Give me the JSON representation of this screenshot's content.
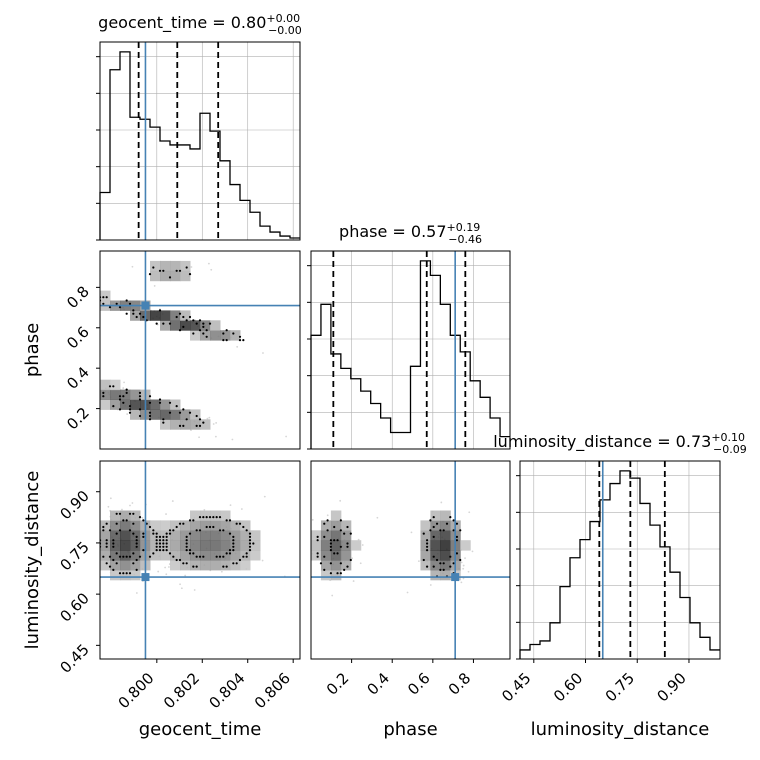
{
  "chart_data": {
    "type": "corner",
    "parameters": [
      "geocent_time",
      "phase",
      "luminosity_distance"
    ],
    "truths": {
      "geocent_time": 0.7995,
      "phase": 0.71,
      "luminosity_distance": 0.65
    },
    "titles": [
      {
        "param": "geocent_time",
        "label": "geocent_time = 0.80",
        "plus": "+0.00",
        "minus": "−0.00"
      },
      {
        "param": "phase",
        "label": "phase = 0.57",
        "plus": "+0.19",
        "minus": "−0.46"
      },
      {
        "param": "luminosity_distance",
        "label": "luminosity_distance = 0.73",
        "plus": "+0.10",
        "minus": "−0.09"
      }
    ],
    "axis_labels": {
      "geocent_time": "geocent_time",
      "phase": "phase",
      "luminosity_distance": "luminosity_distance"
    },
    "ranges": {
      "geocent_time": [
        0.7975,
        0.8063
      ],
      "phase": [
        0.0,
        0.98
      ],
      "luminosity_distance": [
        0.41,
        0.99
      ]
    },
    "tick_labels": {
      "geocent_time": {
        "values": [
          0.8,
          0.802,
          0.804,
          0.806
        ],
        "labels": [
          "0.800",
          "0.802",
          "0.804",
          "0.806"
        ]
      },
      "phase": {
        "values": [
          0.2,
          0.4,
          0.6,
          0.8
        ],
        "labels": [
          "0.2",
          "0.4",
          "0.6",
          "0.8"
        ]
      },
      "luminosity_distance": {
        "values": [
          0.45,
          0.6,
          0.75,
          0.9
        ],
        "labels": [
          "0.45",
          "0.60",
          "0.75",
          "0.90"
        ]
      }
    },
    "quantiles": {
      "geocent_time": [
        0.7992,
        0.8009,
        0.8027
      ],
      "phase": [
        0.11,
        0.57,
        0.76
      ],
      "luminosity_distance": [
        0.64,
        0.73,
        0.83
      ]
    },
    "histograms": {
      "geocent_time": {
        "edges_start": 0.7975,
        "bin_width": 0.00044,
        "counts": [
          0.24,
          0.86,
          0.95,
          0.62,
          0.61,
          0.57,
          0.5,
          0.48,
          0.48,
          0.46,
          0.64,
          0.55,
          0.4,
          0.28,
          0.2,
          0.14,
          0.07,
          0.04,
          0.02,
          0.01
        ]
      },
      "phase": {
        "edges_start": 0.0,
        "bin_width": 0.049,
        "counts": [
          0.55,
          0.7,
          0.46,
          0.39,
          0.34,
          0.28,
          0.22,
          0.15,
          0.08,
          0.08,
          0.4,
          0.91,
          0.84,
          0.7,
          0.55,
          0.47,
          0.33,
          0.25,
          0.15,
          0.06
        ]
      },
      "luminosity_distance": {
        "edges_start": 0.41,
        "bin_width": 0.029,
        "counts": [
          0.05,
          0.08,
          0.1,
          0.2,
          0.4,
          0.56,
          0.66,
          0.76,
          0.88,
          0.97,
          1.04,
          1.0,
          0.86,
          0.74,
          0.62,
          0.48,
          0.34,
          0.2,
          0.12,
          0.05
        ]
      }
    },
    "panels_2d": [
      {
        "x": "geocent_time",
        "y": "phase"
      },
      {
        "x": "geocent_time",
        "y": "luminosity_distance"
      },
      {
        "x": "phase",
        "y": "luminosity_distance"
      }
    ],
    "grid": true
  },
  "colors": {
    "truth": "#4682b4",
    "hist": "#000000",
    "grid": "#b0b0b0"
  }
}
